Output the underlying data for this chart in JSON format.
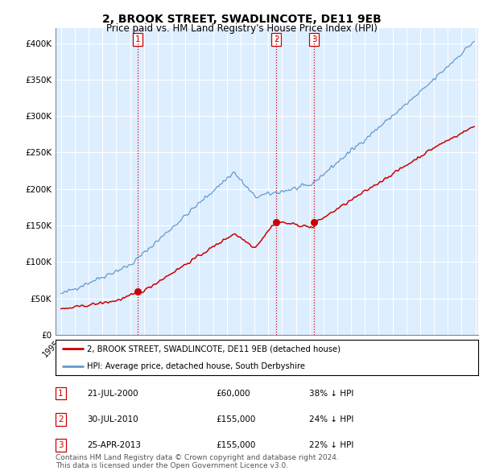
{
  "title": "2, BROOK STREET, SWADLINCOTE, DE11 9EB",
  "subtitle": "Price paid vs. HM Land Registry's House Price Index (HPI)",
  "title_fontsize": 10,
  "subtitle_fontsize": 8.5,
  "property_line_color": "#cc0000",
  "hpi_line_color": "#6699cc",
  "background_color": "#ffffff",
  "plot_bg_color": "#ddeeff",
  "grid_color": "#ffffff",
  "ylim": [
    0,
    420000
  ],
  "yticks": [
    0,
    50000,
    100000,
    150000,
    200000,
    250000,
    300000,
    350000,
    400000
  ],
  "ytick_labels": [
    "£0",
    "£50K",
    "£100K",
    "£150K",
    "£200K",
    "£250K",
    "£300K",
    "£350K",
    "£400K"
  ],
  "xlim_start": 1994.6,
  "xlim_end": 2025.2,
  "legend_property": "2, BROOK STREET, SWADLINCOTE, DE11 9EB (detached house)",
  "legend_hpi": "HPI: Average price, detached house, South Derbyshire",
  "transactions": [
    {
      "num": 1,
      "date": "21-JUL-2000",
      "price": 60000,
      "pct": "38%",
      "year": 2000.55
    },
    {
      "num": 2,
      "date": "30-JUL-2010",
      "price": 155000,
      "pct": "24%",
      "year": 2010.58
    },
    {
      "num": 3,
      "date": "25-APR-2013",
      "price": 155000,
      "pct": "22%",
      "year": 2013.32
    }
  ],
  "vline_color": "#cc0000",
  "footer": "Contains HM Land Registry data © Crown copyright and database right 2024.\nThis data is licensed under the Open Government Licence v3.0.",
  "footer_fontsize": 6.5
}
